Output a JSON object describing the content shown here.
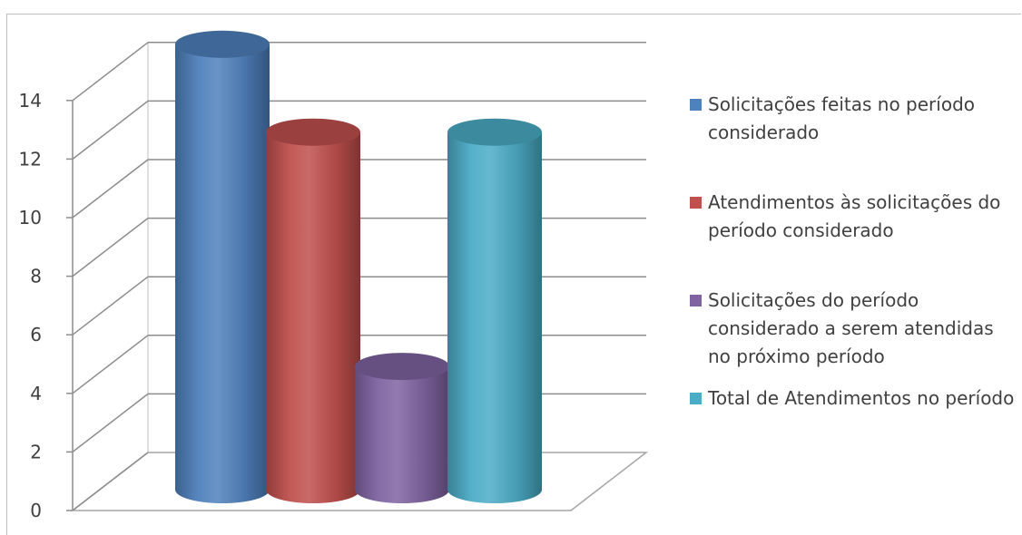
{
  "chart_data": {
    "type": "bar",
    "style": "3d-cylinder",
    "title": "",
    "xlabel": "",
    "ylabel": "",
    "ylim": [
      0,
      14
    ],
    "yticks": [
      0,
      2,
      4,
      6,
      8,
      10,
      12,
      14
    ],
    "grid": true,
    "legend_position": "right",
    "series": [
      {
        "name": "Solicitações feitas no período considerado",
        "value": 14,
        "color": "#4f81bd"
      },
      {
        "name": "Atendimentos às solicitações do período considerado",
        "value": 11,
        "color": "#c0504d"
      },
      {
        "name": "Solicitações do período considerado a serem atendidas no próximo período",
        "value": 3,
        "color": "#8064a2"
      },
      {
        "name": "Total de Atendimentos no período",
        "value": 11,
        "color": "#4bacc6"
      }
    ]
  }
}
